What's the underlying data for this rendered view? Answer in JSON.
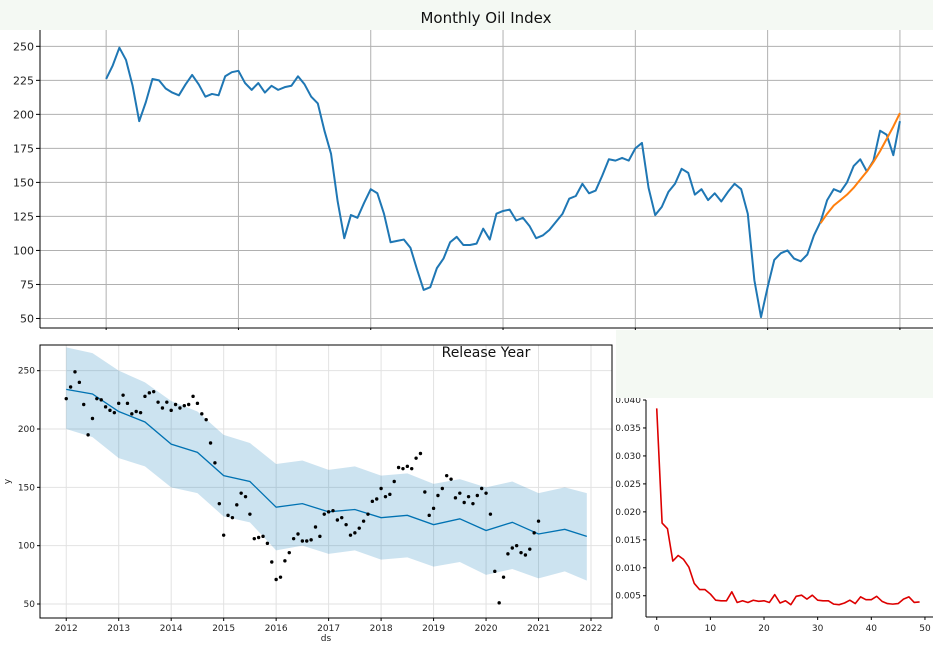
{
  "chart_data": [
    {
      "type": "line",
      "title": "Monthly Oil Index",
      "xlim": [
        -10,
        125
      ],
      "ylim": [
        43,
        262
      ],
      "xticks": [
        0,
        20,
        40,
        60,
        80,
        100,
        120
      ],
      "yticks": [
        50,
        75,
        100,
        125,
        150,
        175,
        200,
        225,
        250
      ],
      "grid": true,
      "series": [
        {
          "color": "#1f77b4",
          "x_start": 0,
          "values": [
            226,
            236,
            249,
            240,
            221,
            195,
            209,
            226,
            225,
            219,
            216,
            214,
            222,
            229,
            222,
            213,
            215,
            214,
            228,
            231,
            232,
            223,
            218,
            223,
            216,
            221,
            218,
            220,
            221,
            228,
            222,
            213,
            208,
            188,
            171,
            136,
            109,
            126,
            124,
            135,
            145,
            142,
            127,
            106,
            107,
            108,
            102,
            86,
            71,
            73,
            87,
            94,
            106,
            110,
            104,
            104,
            105,
            116,
            108,
            127,
            129,
            130,
            122,
            124,
            118,
            109,
            111,
            115,
            121,
            127,
            138,
            140,
            149,
            142,
            144,
            155,
            167,
            166,
            168,
            166,
            175,
            179,
            146,
            126,
            132,
            143,
            149,
            160,
            157,
            141,
            145,
            137,
            142,
            136,
            143,
            149,
            145,
            127,
            78,
            51,
            73,
            93,
            98,
            100,
            94,
            92,
            97,
            111,
            121,
            137,
            145,
            143,
            150,
            162,
            167,
            158,
            166,
            188,
            185,
            170,
            195
          ]
        },
        {
          "color": "#ff7f0e",
          "x": [
            108,
            109,
            110,
            111,
            112,
            113,
            114,
            115,
            116,
            117,
            118,
            119,
            120
          ],
          "values": [
            120,
            127,
            133,
            137,
            141,
            146,
            152,
            158,
            165,
            173,
            182,
            191,
            201
          ]
        }
      ]
    },
    {
      "type": "scatter",
      "title": "Release Year",
      "xlabel": "ds",
      "ylabel": "y",
      "xticks": [
        "2012",
        "2013",
        "2014",
        "2015",
        "2016",
        "2017",
        "2018",
        "2019",
        "2020",
        "2021",
        "2022"
      ],
      "yticks": [
        50,
        100,
        150,
        200,
        250
      ],
      "xlim": [
        2011.5,
        2022.4
      ],
      "ylim": [
        38,
        272
      ],
      "grid": true,
      "observed_start": 2012.0,
      "observed_values": [
        226,
        236,
        249,
        240,
        221,
        195,
        209,
        226,
        225,
        219,
        216,
        214,
        222,
        229,
        222,
        213,
        215,
        214,
        228,
        231,
        232,
        223,
        218,
        223,
        216,
        221,
        218,
        220,
        221,
        228,
        222,
        213,
        208,
        188,
        171,
        136,
        109,
        126,
        124,
        135,
        145,
        142,
        127,
        106,
        107,
        108,
        102,
        86,
        71,
        73,
        87,
        94,
        106,
        110,
        104,
        104,
        105,
        116,
        108,
        127,
        129,
        130,
        122,
        124,
        118,
        109,
        111,
        115,
        121,
        127,
        138,
        140,
        149,
        142,
        144,
        155,
        167,
        166,
        168,
        166,
        175,
        179,
        146,
        126,
        132,
        143,
        149,
        160,
        157,
        141,
        145,
        137,
        142,
        136,
        143,
        149,
        145,
        127,
        78,
        51,
        73,
        93,
        98,
        100,
        94,
        92,
        97,
        111,
        121
      ],
      "forecast_color": "#0072b2",
      "interval_color": "#0072b2",
      "forecast_x": [
        2012.0,
        2012.5,
        2013.0,
        2013.5,
        2014.0,
        2014.5,
        2015.0,
        2015.5,
        2016.0,
        2016.5,
        2017.0,
        2017.5,
        2018.0,
        2018.5,
        2019.0,
        2019.5,
        2020.0,
        2020.5,
        2021.0,
        2021.5,
        2021.92
      ],
      "yhat": [
        234,
        230,
        215,
        206,
        187,
        180,
        160,
        155,
        133,
        136,
        129,
        131,
        124,
        126,
        118,
        123,
        113,
        120,
        110,
        114,
        108
      ],
      "yhat_lower": [
        200,
        193,
        175,
        168,
        150,
        145,
        125,
        120,
        96,
        100,
        93,
        96,
        88,
        90,
        82,
        86,
        75,
        80,
        72,
        78,
        70
      ],
      "yhat_upper": [
        270,
        265,
        250,
        240,
        224,
        215,
        195,
        188,
        170,
        173,
        165,
        168,
        160,
        162,
        153,
        157,
        150,
        155,
        145,
        150,
        145
      ]
    },
    {
      "type": "line",
      "xlim": [
        -2,
        51.5
      ],
      "ylim": [
        0.0012,
        0.04
      ],
      "xticks": [
        0,
        10,
        20,
        30,
        40,
        50
      ],
      "yticks": [
        0.005,
        0.01,
        0.015,
        0.02,
        0.025,
        0.03,
        0.035,
        0.04
      ],
      "grid": false,
      "series": [
        {
          "color": "#dd0000",
          "values": [
            0.0385,
            0.018,
            0.017,
            0.0112,
            0.0122,
            0.0115,
            0.0101,
            0.0072,
            0.0061,
            0.0061,
            0.0053,
            0.0042,
            0.0041,
            0.0041,
            0.0057,
            0.0038,
            0.0041,
            0.0038,
            0.0042,
            0.004,
            0.0041,
            0.0038,
            0.0052,
            0.0037,
            0.0041,
            0.0034,
            0.0049,
            0.0051,
            0.0044,
            0.0051,
            0.0042,
            0.0041,
            0.0041,
            0.0035,
            0.0034,
            0.0037,
            0.0042,
            0.0036,
            0.0048,
            0.0043,
            0.0043,
            0.0049,
            0.004,
            0.0036,
            0.0035,
            0.0036,
            0.0044,
            0.0048,
            0.0038,
            0.0039
          ]
        }
      ]
    }
  ]
}
